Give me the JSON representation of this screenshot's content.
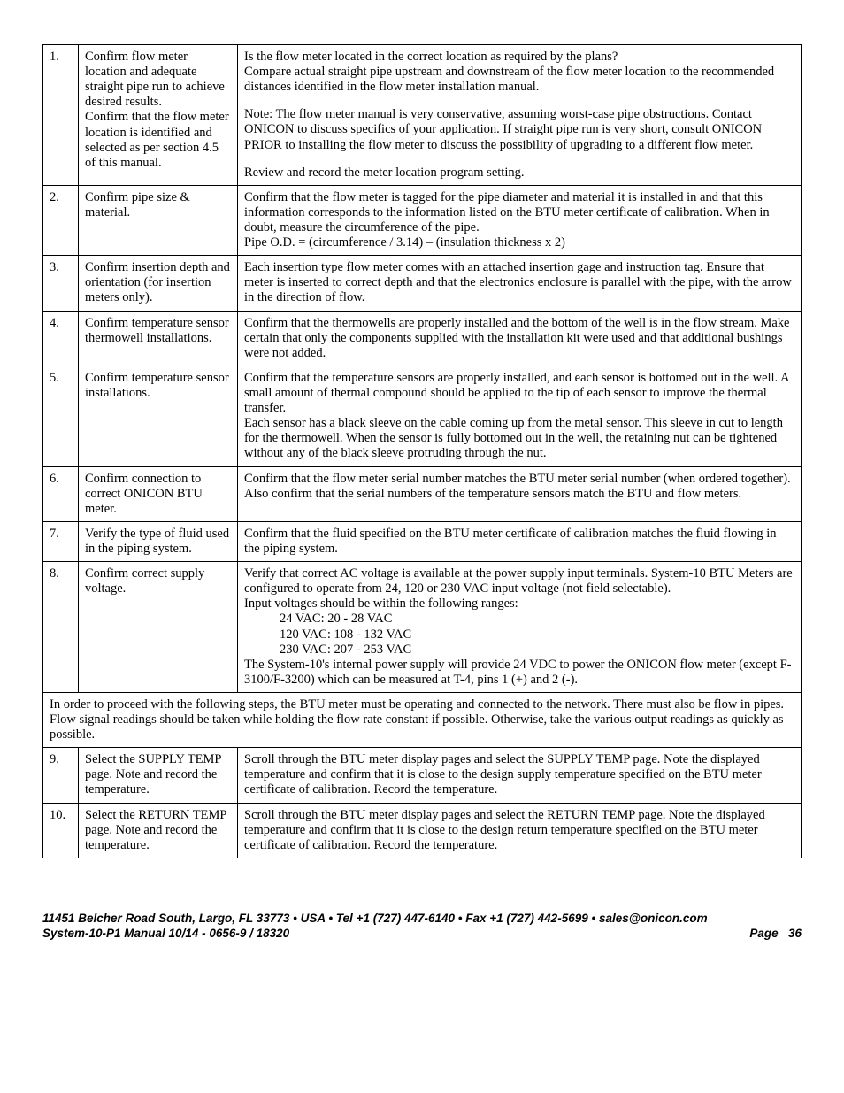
{
  "rows": [
    {
      "num": "1.",
      "task_paras": [
        "Confirm flow meter location and adequate straight pipe run to achieve desired results.",
        "Confirm that the flow meter location is identified and selected as per section 4.5 of this manual."
      ],
      "desc_paras": [
        "Is the flow meter located in the correct location as required by the plans?",
        "Compare actual straight pipe upstream and downstream of the flow meter location to the recommended distances identified in the flow meter installation manual.",
        "Note: The flow meter manual is very conservative, assuming worst-case pipe obstructions. Contact ONICON to discuss specifics of your application. If straight pipe run is very short, consult ONICON PRIOR to installing the flow meter to discuss the possibility of upgrading to a different flow meter.",
        "Review and record the meter location program setting."
      ]
    },
    {
      "num": "2.",
      "task_paras": [
        "Confirm pipe size & material."
      ],
      "desc_paras": [
        "Confirm that the flow meter is tagged for the pipe diameter and material it is installed in and that this information corresponds to the information listed on the BTU meter certificate of calibration. When in doubt, measure the circumference of the pipe.",
        "Pipe O.D. = (circumference / 3.14) – (insulation thickness x 2)"
      ]
    },
    {
      "num": "3.",
      "task_paras": [
        "Confirm insertion depth and orientation (for insertion meters only)."
      ],
      "desc_paras": [
        "Each insertion type flow meter comes with an attached insertion gage and instruction tag. Ensure that meter is inserted to correct depth and that the electronics enclosure is parallel with the pipe, with the arrow in the direction of flow."
      ]
    },
    {
      "num": "4.",
      "task_paras": [
        "Confirm temperature sensor thermowell installations."
      ],
      "desc_paras": [
        "Confirm that the thermowells are properly installed and the bottom of the well is in the flow stream. Make certain that only the components supplied with the installation kit were used and that additional bushings were not added."
      ]
    },
    {
      "num": "5.",
      "task_paras": [
        "Confirm temperature sensor installations."
      ],
      "desc_paras": [
        "Confirm that the temperature sensors are properly installed, and each sensor is bottomed out in the well. A small amount of thermal compound should be applied to the tip of each sensor to improve the thermal transfer.",
        "Each sensor has a black sleeve on the cable coming up from the metal sensor. This sleeve in cut to length for the thermowell. When the sensor is fully bottomed out in the well, the retaining nut can be tightened without any of the black sleeve protruding through the nut."
      ]
    },
    {
      "num": "6.",
      "task_paras": [
        "Confirm connection to correct ONICON BTU meter."
      ],
      "desc_paras": [
        "Confirm that the flow meter serial number matches the BTU meter serial number (when ordered together). Also confirm that the serial numbers of the temperature sensors match the BTU and flow meters."
      ]
    },
    {
      "num": "7.",
      "task_paras": [
        "Verify the type of fluid used in the piping system."
      ],
      "desc_paras": [
        "Confirm that the fluid specified on the BTU meter certificate of calibration matches the fluid flowing in the piping system."
      ]
    },
    {
      "num": "8.",
      "task_paras": [
        "Confirm correct supply voltage."
      ],
      "desc_paras": [
        "Verify that correct AC voltage is available at the power supply input terminals. System-10 BTU Meters are configured to operate from 24, 120 or 230 VAC input voltage (not field selectable).",
        "Input voltages should be within the following ranges:",
        {
          "indent": true,
          "text": "24 VAC: 20 - 28 VAC"
        },
        {
          "indent": true,
          "text": "120 VAC: 108 - 132 VAC"
        },
        {
          "indent": true,
          "text": "230 VAC: 207 - 253 VAC"
        },
        "The System-10's internal power supply will provide 24 VDC to power the ONICON flow meter (except F-3100/F-3200) which can be measured at T-4, pins 1 (+) and 2 (-)."
      ]
    },
    {
      "span": true,
      "desc_paras": [
        "In order to proceed with the following steps, the BTU meter must be operating and connected to the network. There must also be flow in pipes. Flow signal readings should be taken while holding the flow rate constant if possible. Otherwise, take the various output readings as quickly as possible."
      ]
    },
    {
      "num": "9.",
      "task_paras": [
        "Select the SUPPLY TEMP page. Note and record the temperature."
      ],
      "desc_paras": [
        "Scroll through the BTU meter display pages and select the SUPPLY TEMP page. Note the displayed temperature and confirm that it is close to the design supply temperature specified on the BTU meter certificate of calibration. Record the temperature."
      ]
    },
    {
      "num": "10.",
      "task_paras": [
        "Select the RETURN TEMP page. Note and record the temperature."
      ],
      "desc_paras": [
        "Scroll through the BTU meter display pages and select the RETURN TEMP page. Note the displayed temperature and confirm that it is close to the design return temperature specified on the BTU meter certificate of calibration. Record the temperature."
      ]
    }
  ],
  "footer": {
    "line1": "11451 Belcher Road South, Largo, FL 33773 • USA • Tel +1 (727) 447-6140 • Fax +1 (727) 442-5699 • sales@onicon.com",
    "line2_left": "System-10-P1 Manual 10/14 - 0656-9 / 18320",
    "line2_right_label": "Page",
    "line2_right_num": "36"
  }
}
